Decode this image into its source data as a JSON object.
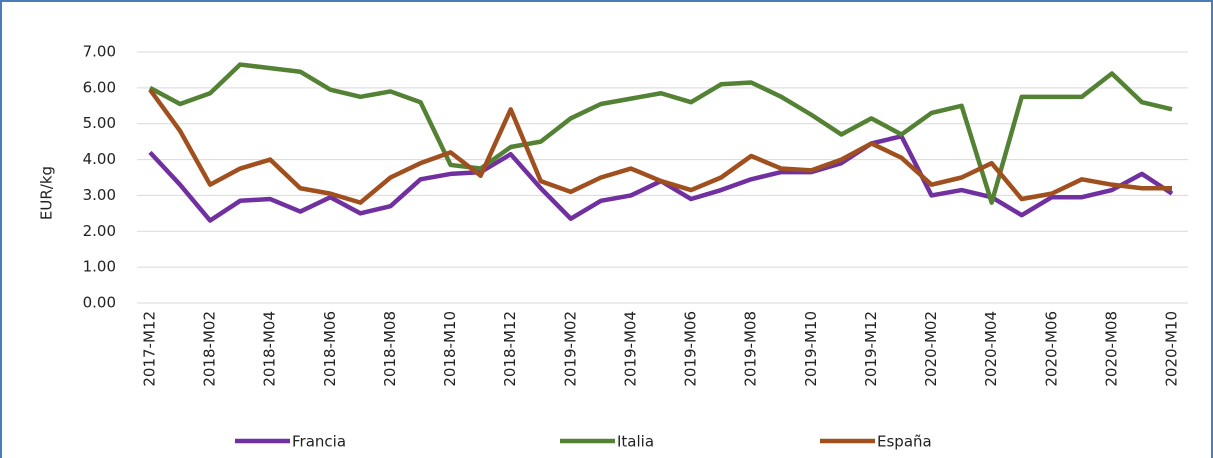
{
  "chart_data": {
    "type": "line",
    "y_label": "EUR/kg",
    "categories": [
      "2017-M12",
      null,
      "2018-M02",
      null,
      "2018-M04",
      null,
      "2018-M06",
      null,
      "2018-M08",
      null,
      "2018-M10",
      null,
      "2018-M12",
      null,
      "2019-M02",
      null,
      "2019-M04",
      null,
      "2019-M06",
      null,
      "2019-M08",
      null,
      "2019-M10",
      null,
      "2019-M12",
      null,
      "2020-M02",
      null,
      "2020-M04",
      null,
      "2020-M06",
      null,
      "2020-M08",
      null,
      "2020-M10"
    ],
    "series": [
      {
        "name": "Francia",
        "color": "#7030a0",
        "values": [
          4.2,
          3.3,
          2.3,
          2.85,
          2.9,
          2.55,
          2.95,
          2.5,
          2.7,
          3.45,
          3.6,
          3.65,
          4.15,
          3.2,
          2.35,
          2.85,
          3.0,
          3.4,
          2.9,
          3.15,
          3.45,
          3.65,
          3.65,
          3.9,
          4.45,
          4.65,
          3.0,
          3.15,
          2.95,
          2.45,
          2.95,
          2.95,
          3.15,
          3.6,
          3.05
        ]
      },
      {
        "name": "Italia",
        "color": "#548235",
        "values": [
          6.0,
          5.55,
          5.85,
          6.65,
          6.55,
          6.45,
          5.95,
          5.75,
          5.9,
          5.6,
          3.85,
          3.75,
          4.35,
          4.5,
          5.15,
          5.55,
          5.7,
          5.85,
          5.6,
          6.1,
          6.15,
          5.75,
          5.25,
          4.7,
          5.15,
          4.7,
          5.3,
          5.5,
          2.8,
          5.75,
          5.75,
          5.75,
          6.4,
          5.6,
          5.4
        ]
      },
      {
        "name": "España",
        "color": "#a0501e",
        "values": [
          5.95,
          4.8,
          3.3,
          3.75,
          4.0,
          3.2,
          3.05,
          2.8,
          3.5,
          3.9,
          4.2,
          3.55,
          5.4,
          3.4,
          3.1,
          3.5,
          3.75,
          3.4,
          3.15,
          3.5,
          4.1,
          3.75,
          3.7,
          4.0,
          4.45,
          4.05,
          3.3,
          3.5,
          3.9,
          2.9,
          3.05,
          3.45,
          3.3,
          3.2,
          3.2
        ]
      }
    ],
    "ylim": [
      0,
      7
    ],
    "yticks": [
      {
        "value": 0,
        "label": "0.00"
      },
      {
        "value": 1,
        "label": "1.00"
      },
      {
        "value": 2,
        "label": "2.00"
      },
      {
        "value": 3,
        "label": "3.00"
      },
      {
        "value": 4,
        "label": "4.00"
      },
      {
        "value": 5,
        "label": "5.00"
      },
      {
        "value": 6,
        "label": "6.00"
      },
      {
        "value": 7,
        "label": "7.00"
      }
    ],
    "grid": true,
    "legend": "bottom"
  }
}
